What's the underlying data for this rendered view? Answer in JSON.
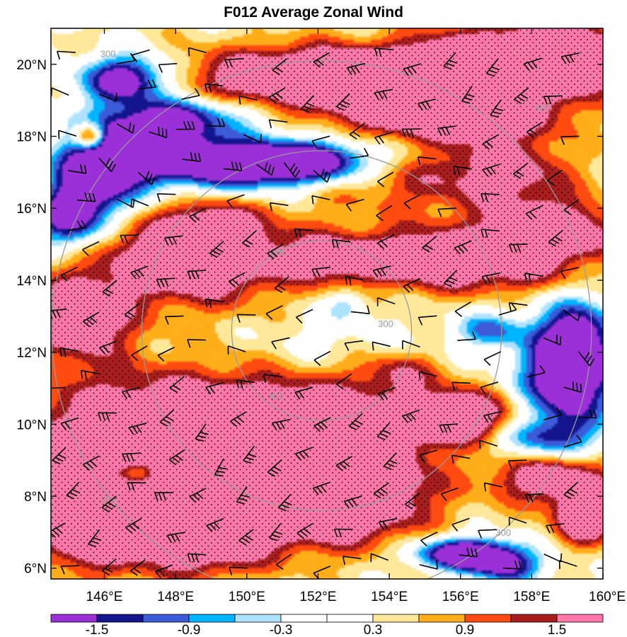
{
  "chart_data": {
    "type": "heatmap",
    "title": "F012 Average Zonal Wind",
    "xlim": [
      144.5,
      160.0
    ],
    "ylim": [
      5.7,
      21.0
    ],
    "x_ticks": [
      {
        "value": 146,
        "label": "146°E"
      },
      {
        "value": 148,
        "label": "148°E"
      },
      {
        "value": 150,
        "label": "150°E"
      },
      {
        "value": 152,
        "label": "152°E"
      },
      {
        "value": 154,
        "label": "154°E"
      },
      {
        "value": 156,
        "label": "156°E"
      },
      {
        "value": 158,
        "label": "158°E"
      },
      {
        "value": 160,
        "label": "160°E"
      }
    ],
    "y_ticks": [
      {
        "value": 6,
        "label": "6°N"
      },
      {
        "value": 8,
        "label": "8°N"
      },
      {
        "value": 10,
        "label": "10°N"
      },
      {
        "value": 12,
        "label": "12°N"
      },
      {
        "value": 14,
        "label": "14°N"
      },
      {
        "value": 16,
        "label": "16°N"
      },
      {
        "value": 18,
        "label": "18°N"
      },
      {
        "value": 20,
        "label": "20°N"
      }
    ],
    "colorbar": {
      "colors": [
        "#9b30d9",
        "#14148c",
        "#3b5bd9",
        "#00b4ff",
        "#aee3ff",
        "#ffffff",
        "#ffffff",
        "#ffe89a",
        "#ffae1a",
        "#ff4a10",
        "#a91d1d",
        "#ff77a8"
      ],
      "levels": [
        -1.5,
        -1.2,
        -0.9,
        -0.6,
        -0.3,
        0,
        0.3,
        0.6,
        0.9,
        1.2,
        1.5
      ],
      "labels": [
        {
          "level": -1.5,
          "text": "-1.5"
        },
        {
          "level": -0.9,
          "text": "-0.9"
        },
        {
          "level": -0.3,
          "text": "-0.3"
        },
        {
          "level": 0.3,
          "text": "0.3"
        },
        {
          "level": 0.9,
          "text": "0.9"
        },
        {
          "level": 1.5,
          "text": "1.5"
        }
      ]
    },
    "range_rings": {
      "center": [
        152.1,
        12.6
      ],
      "radii_deg": [
        2.5,
        5.0,
        7.5
      ],
      "labels": [
        {
          "text": "300",
          "lon": 150.9,
          "lat": 14.7
        },
        {
          "text": "300",
          "lon": 153.9,
          "lat": 12.7
        },
        {
          "text": "300",
          "lon": 150.8,
          "lat": 10.7
        },
        {
          "text": "300",
          "lon": 146.1,
          "lat": 20.2
        },
        {
          "text": "300",
          "lon": 158.3,
          "lat": 18.7
        },
        {
          "text": "300",
          "lon": 146.1,
          "lat": 7.8
        },
        {
          "text": "300",
          "lon": 157.2,
          "lat": 6.9
        }
      ]
    },
    "stipple": "dots where value > 1.2",
    "wind_barbs": "black barbs on a regular grid",
    "field_features": [
      {
        "lon": 146.6,
        "lat": 19.6,
        "amp": -2.5,
        "sx": 0.9,
        "sy": 0.45
      },
      {
        "lon": 145.8,
        "lat": 17.0,
        "amp": -2.6,
        "sx": 0.9,
        "sy": 0.9
      },
      {
        "lon": 147.4,
        "lat": 17.9,
        "amp": -2.4,
        "sx": 1.0,
        "sy": 0.55
      },
      {
        "lon": 149.6,
        "lat": 17.2,
        "amp": -2.7,
        "sx": 1.8,
        "sy": 0.5
      },
      {
        "lon": 152.0,
        "lat": 17.3,
        "amp": -2.0,
        "sx": 1.3,
        "sy": 0.4
      },
      {
        "lon": 145.0,
        "lat": 15.7,
        "amp": -2.0,
        "sx": 0.7,
        "sy": 0.6
      },
      {
        "lon": 148.5,
        "lat": 18.6,
        "amp": -1.4,
        "sx": 1.5,
        "sy": 0.4
      },
      {
        "lon": 152.3,
        "lat": 19.6,
        "amp": 2.8,
        "sx": 2.6,
        "sy": 0.6
      },
      {
        "lon": 156.5,
        "lat": 19.7,
        "amp": 2.6,
        "sx": 1.5,
        "sy": 0.8
      },
      {
        "lon": 159.0,
        "lat": 20.2,
        "amp": 2.4,
        "sx": 1.2,
        "sy": 0.7
      },
      {
        "lon": 155.5,
        "lat": 18.5,
        "amp": 1.6,
        "sx": 2.0,
        "sy": 0.4
      },
      {
        "lon": 148.5,
        "lat": 14.7,
        "amp": 2.4,
        "sx": 1.8,
        "sy": 0.9
      },
      {
        "lon": 149.2,
        "lat": 15.4,
        "amp": 1.0,
        "sx": 0.6,
        "sy": 0.5
      },
      {
        "lon": 152.6,
        "lat": 14.6,
        "amp": 1.4,
        "sx": 1.2,
        "sy": 0.5
      },
      {
        "lon": 155.5,
        "lat": 14.6,
        "amp": 1.9,
        "sx": 1.5,
        "sy": 0.6
      },
      {
        "lon": 158.6,
        "lat": 15.3,
        "amp": 2.2,
        "sx": 1.3,
        "sy": 0.6
      },
      {
        "lon": 145.3,
        "lat": 13.0,
        "amp": 2.0,
        "sx": 1.0,
        "sy": 0.8
      },
      {
        "lon": 154.5,
        "lat": 16.8,
        "amp": 0.9,
        "sx": 2.3,
        "sy": 0.7
      },
      {
        "lon": 157.4,
        "lat": 17.1,
        "amp": 1.2,
        "sx": 1.2,
        "sy": 0.7
      },
      {
        "lon": 152.8,
        "lat": 13.3,
        "amp": -0.8,
        "sx": 0.4,
        "sy": 0.3
      },
      {
        "lon": 152.2,
        "lat": 12.3,
        "amp": -0.3,
        "sx": 1.3,
        "sy": 0.7
      },
      {
        "lon": 156.8,
        "lat": 12.6,
        "amp": -1.3,
        "sx": 0.7,
        "sy": 0.35
      },
      {
        "lon": 159.0,
        "lat": 11.3,
        "amp": -2.8,
        "sx": 0.9,
        "sy": 1.0
      },
      {
        "lon": 159.3,
        "lat": 12.5,
        "amp": -1.6,
        "sx": 0.7,
        "sy": 0.7
      },
      {
        "lon": 158.3,
        "lat": 9.6,
        "amp": -1.4,
        "sx": 1.0,
        "sy": 0.4
      },
      {
        "lon": 154.2,
        "lat": 11.4,
        "amp": 1.0,
        "sx": 0.9,
        "sy": 0.4
      },
      {
        "lon": 147.5,
        "lat": 9.6,
        "amp": 2.6,
        "sx": 2.6,
        "sy": 1.2
      },
      {
        "lon": 151.6,
        "lat": 9.5,
        "amp": 2.8,
        "sx": 1.8,
        "sy": 1.0
      },
      {
        "lon": 155.8,
        "lat": 10.2,
        "amp": 2.4,
        "sx": 1.2,
        "sy": 0.5
      },
      {
        "lon": 152.5,
        "lat": 8.0,
        "amp": 2.6,
        "sx": 1.7,
        "sy": 0.9
      },
      {
        "lon": 148.5,
        "lat": 7.0,
        "amp": 2.4,
        "sx": 1.5,
        "sy": 0.8
      },
      {
        "lon": 145.4,
        "lat": 7.3,
        "amp": 2.2,
        "sx": 0.9,
        "sy": 0.9
      },
      {
        "lon": 158.6,
        "lat": 8.5,
        "amp": 1.8,
        "sx": 1.2,
        "sy": 0.5
      },
      {
        "lon": 159.5,
        "lat": 7.4,
        "amp": 2.2,
        "sx": 0.6,
        "sy": 0.5
      },
      {
        "lon": 156.2,
        "lat": 6.4,
        "amp": -3.0,
        "sx": 1.0,
        "sy": 0.3
      },
      {
        "lon": 157.3,
        "lat": 6.0,
        "amp": -1.6,
        "sx": 0.7,
        "sy": 0.3
      },
      {
        "lon": 147.0,
        "lat": 8.7,
        "amp": -1.8,
        "sx": 0.4,
        "sy": 0.25
      },
      {
        "lon": 145.7,
        "lat": 8.6,
        "amp": -0.8,
        "sx": 0.6,
        "sy": 0.25
      },
      {
        "lon": 157.8,
        "lat": 14.1,
        "amp": 0.6,
        "sx": 1.2,
        "sy": 0.4
      },
      {
        "lon": 145.6,
        "lat": 18.0,
        "amp": 2.6,
        "sx": 0.3,
        "sy": 0.25
      }
    ],
    "field_baseline": 0.35
  }
}
